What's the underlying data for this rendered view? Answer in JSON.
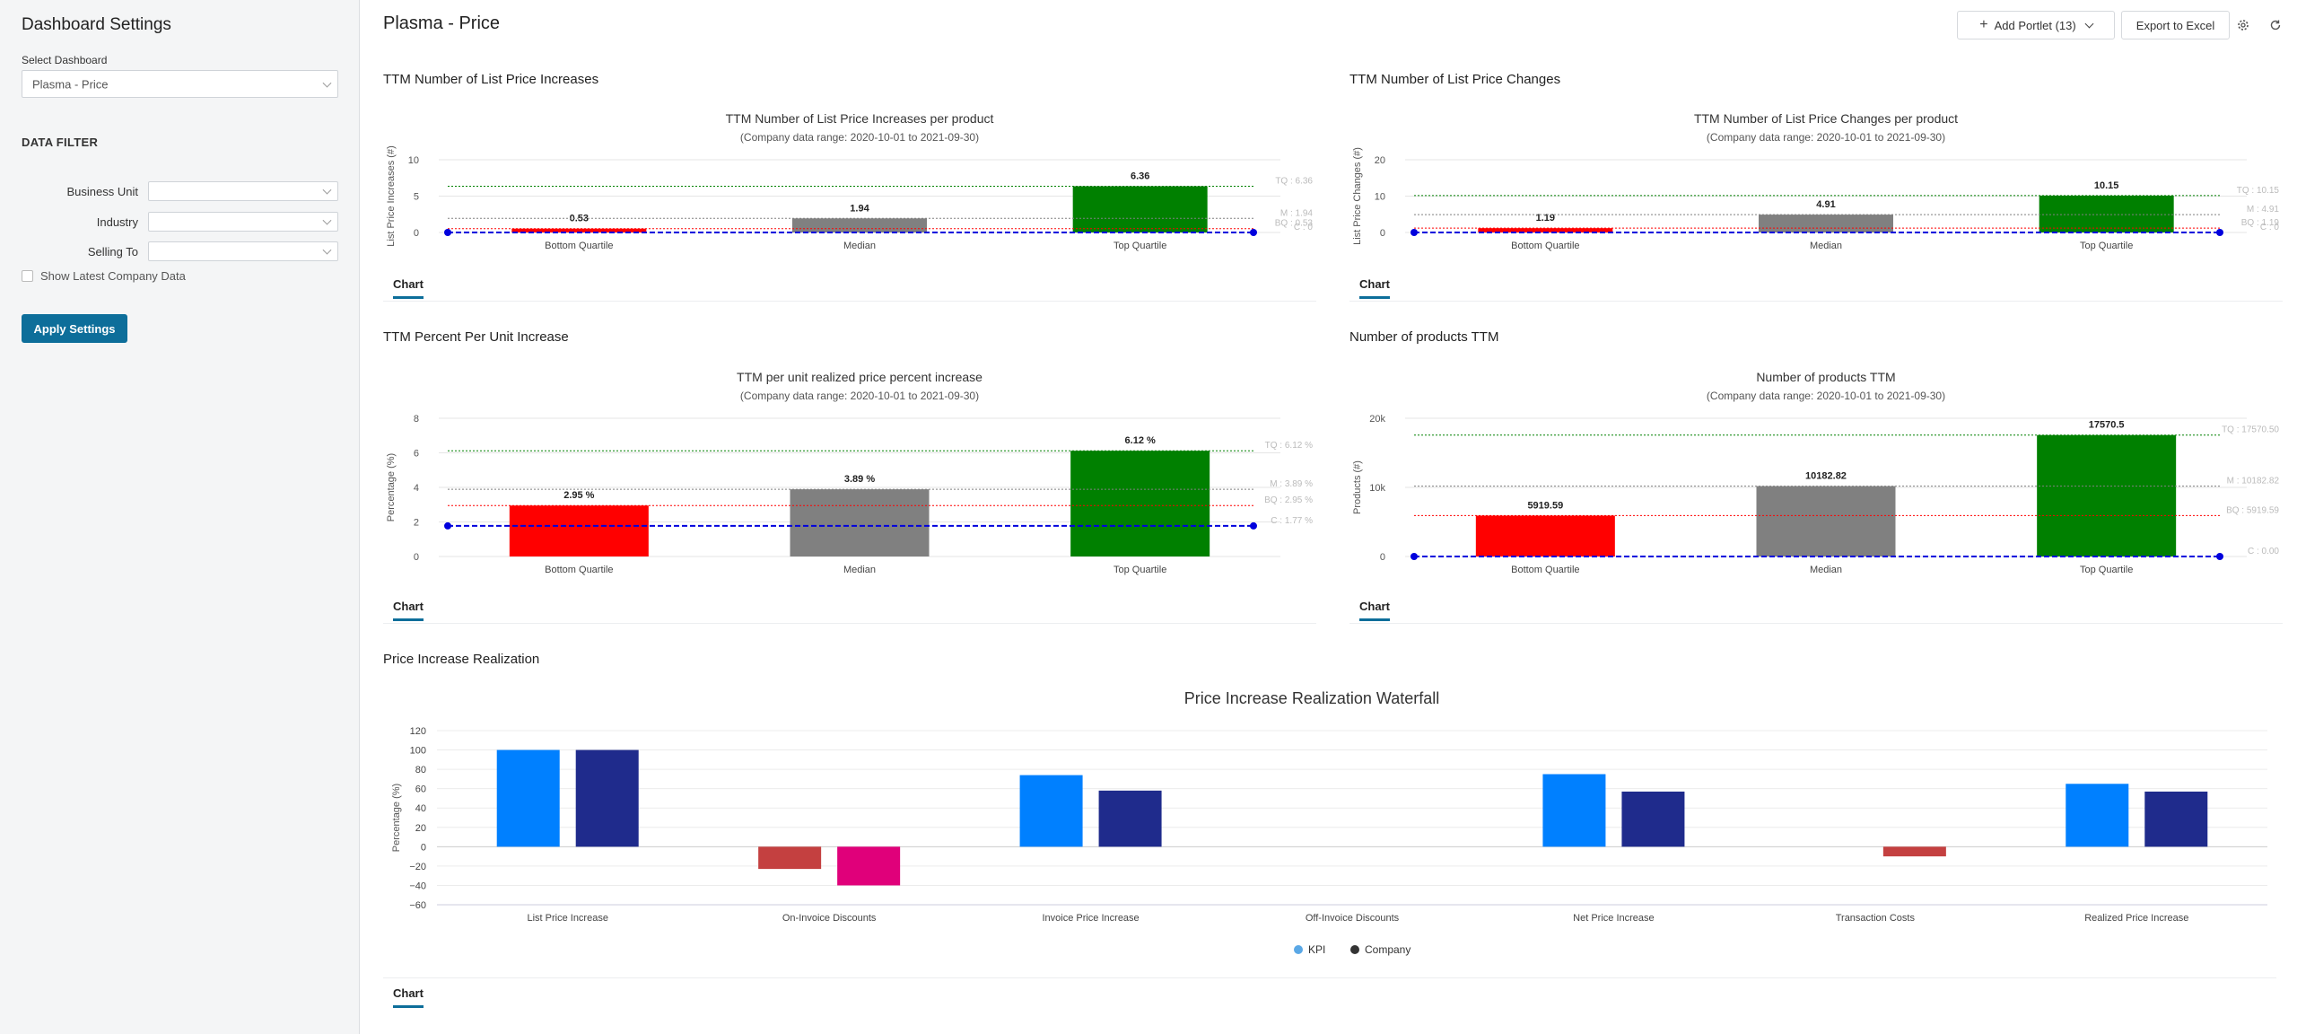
{
  "sidebar": {
    "title": "Dashboard Settings",
    "select_label": "Select Dashboard",
    "dashboard_value": "Plasma - Price",
    "filter_title": "DATA FILTER",
    "filters": [
      {
        "label": "Business Unit",
        "value": ""
      },
      {
        "label": "Industry",
        "value": ""
      },
      {
        "label": "Selling To",
        "value": ""
      }
    ],
    "show_latest_label": "Show Latest Company Data",
    "apply_label": "Apply Settings"
  },
  "header": {
    "title": "Plasma - Price",
    "add_portlet_label": "Add Portlet (13)",
    "export_label": "Export to Excel"
  },
  "colors": {
    "accent": "#0d6e9a",
    "red": "#ff0000",
    "gray": "#808080",
    "green": "#008000",
    "kpi_blue": "#0080ff",
    "company_navy": "#1f2b8c",
    "neg_red": "#c44040",
    "neg_magenta": "#e0007a"
  },
  "panels": [
    {
      "title": "TTM Number of List Price Increases",
      "tab": "Chart"
    },
    {
      "title": "TTM Number of List Price Changes",
      "tab": "Chart"
    },
    {
      "title": "TTM Percent Per Unit Increase",
      "tab": "Chart"
    },
    {
      "title": "Number of products TTM",
      "tab": "Chart"
    },
    {
      "title": "Price Increase Realization",
      "tab": "Chart"
    }
  ],
  "chart_data": [
    {
      "type": "bar",
      "title": "TTM Number of List Price Increases per product",
      "subtitle": "(Company data range: 2020-10-01 to 2021-09-30)",
      "ylabel": "List Price Increases (#)",
      "categories": [
        "Bottom Quartile",
        "Median",
        "Top Quartile"
      ],
      "values": [
        0.53,
        1.94,
        6.36
      ],
      "value_labels": [
        "0.53",
        "1.94",
        "6.36"
      ],
      "ylim": [
        0,
        10
      ],
      "yticks": [
        0,
        5,
        10
      ],
      "reference_lines": [
        {
          "label": "TQ : 6.36",
          "value": 6.36,
          "color": "green"
        },
        {
          "label": "M : 1.94",
          "value": 1.94,
          "color": "gray"
        },
        {
          "label": "BQ : 0.53",
          "value": 0.53,
          "color": "red"
        },
        {
          "label": "C : 0",
          "value": 0,
          "color": "blue"
        }
      ]
    },
    {
      "type": "bar",
      "title": "TTM Number of List Price Changes per product",
      "subtitle": "(Company data range: 2020-10-01 to 2021-09-30)",
      "ylabel": "List Price Changes (#)",
      "categories": [
        "Bottom Quartile",
        "Median",
        "Top Quartile"
      ],
      "values": [
        1.19,
        4.91,
        10.15
      ],
      "value_labels": [
        "1.19",
        "4.91",
        "10.15"
      ],
      "ylim": [
        0,
        20
      ],
      "yticks": [
        0,
        10,
        20
      ],
      "reference_lines": [
        {
          "label": "TQ : 10.15",
          "value": 10.15,
          "color": "green"
        },
        {
          "label": "M : 4.91",
          "value": 4.91,
          "color": "gray"
        },
        {
          "label": "BQ : 1.19",
          "value": 1.19,
          "color": "red"
        },
        {
          "label": "C : 0",
          "value": 0,
          "color": "blue"
        }
      ]
    },
    {
      "type": "bar",
      "title": "TTM per unit realized price percent increase",
      "subtitle": "(Company data range: 2020-10-01 to 2021-09-30)",
      "ylabel": "Percentage (%)",
      "categories": [
        "Bottom Quartile",
        "Median",
        "Top Quartile"
      ],
      "values": [
        2.95,
        3.89,
        6.12
      ],
      "value_labels": [
        "2.95 %",
        "3.89 %",
        "6.12 %"
      ],
      "ylim": [
        0,
        8
      ],
      "yticks": [
        0,
        2,
        4,
        6,
        8
      ],
      "reference_lines": [
        {
          "label": "TQ : 6.12 %",
          "value": 6.12,
          "color": "green"
        },
        {
          "label": "M : 3.89 %",
          "value": 3.89,
          "color": "gray"
        },
        {
          "label": "BQ : 2.95 %",
          "value": 2.95,
          "color": "red"
        },
        {
          "label": "C : 1.77 %",
          "value": 1.77,
          "color": "blue"
        }
      ]
    },
    {
      "type": "bar",
      "title": "Number of products TTM",
      "subtitle": "(Company data range: 2020-10-01 to 2021-09-30)",
      "ylabel": "Products (#)",
      "categories": [
        "Bottom Quartile",
        "Median",
        "Top Quartile"
      ],
      "values": [
        5919.59,
        10182.82,
        17570.5
      ],
      "value_labels": [
        "5919.59",
        "10182.82",
        "17570.5"
      ],
      "ylim": [
        0,
        20000
      ],
      "yticks": [
        0,
        10000,
        20000
      ],
      "ytick_labels": [
        "0",
        "10k",
        "20k"
      ],
      "reference_lines": [
        {
          "label": "TQ : 17570.50",
          "value": 17570.5,
          "color": "green"
        },
        {
          "label": "M : 10182.82",
          "value": 10182.82,
          "color": "gray"
        },
        {
          "label": "BQ : 5919.59",
          "value": 5919.59,
          "color": "red"
        },
        {
          "label": "C : 0.00",
          "value": 0,
          "color": "blue"
        }
      ]
    },
    {
      "type": "bar",
      "title": "Price Increase Realization Waterfall",
      "ylabel": "Percentage (%)",
      "categories": [
        "List Price Increase",
        "On-Invoice Discounts",
        "Invoice Price Increase",
        "Off-Invoice Discounts",
        "Net Price Increase",
        "Transaction Costs",
        "Realized Price Increase"
      ],
      "series": [
        {
          "name": "KPI",
          "values": [
            100,
            -23,
            74,
            0,
            75,
            null,
            65
          ]
        },
        {
          "name": "Company",
          "values": [
            100,
            -40,
            58,
            0,
            57,
            -10,
            57
          ]
        }
      ],
      "ylim": [
        -60,
        120
      ],
      "yticks": [
        -60,
        -40,
        -20,
        0,
        20,
        40,
        60,
        80,
        100,
        120
      ],
      "legend": [
        "KPI",
        "Company"
      ],
      "legend_position": "bottom"
    }
  ]
}
